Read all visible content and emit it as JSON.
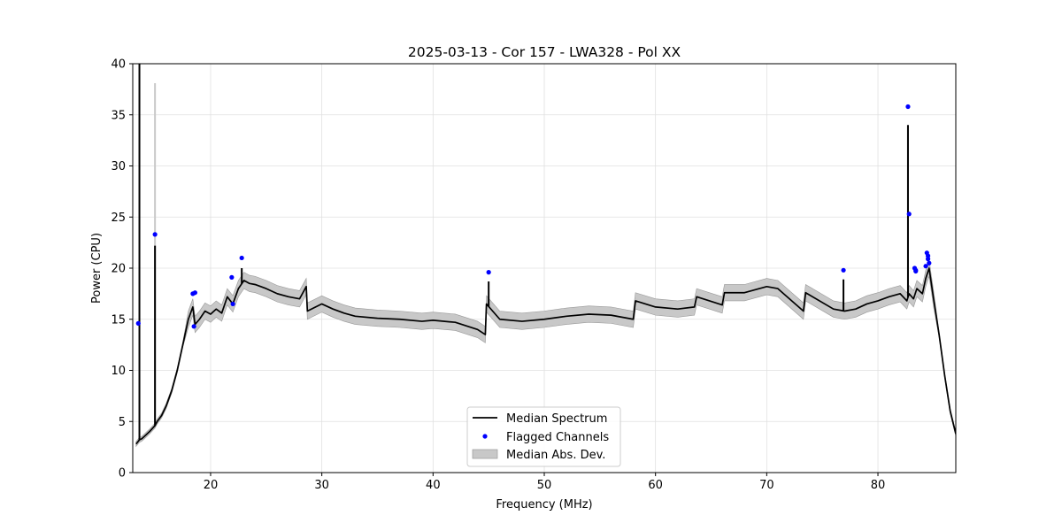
{
  "chart_data": {
    "type": "line",
    "title": "2025-03-13 - Cor 157 - LWA328 - Pol XX",
    "xlabel": "Frequency (MHz)",
    "ylabel": "Power (CPU)",
    "xlim": [
      13.0,
      87.0
    ],
    "ylim": [
      0,
      40
    ],
    "xticks": [
      20,
      30,
      40,
      50,
      60,
      70,
      80
    ],
    "yticks": [
      0,
      5,
      10,
      15,
      20,
      25,
      30,
      35,
      40
    ],
    "grid": true,
    "legend_position": "bottom-center",
    "legend": [
      "Median Spectrum",
      "Flagged Channels",
      "Median Abs. Dev."
    ],
    "colors": {
      "line": "#000000",
      "flagged": "#0000ff",
      "band": "#c8c8c8",
      "band_edge": "#999999",
      "grid": "#e0e0e0"
    },
    "series": [
      {
        "name": "Median Spectrum",
        "x": [
          13.3,
          13.6,
          13.8,
          14.0,
          14.5,
          15.0,
          15.2,
          15.6,
          16.0,
          16.5,
          17.0,
          17.5,
          18.0,
          18.4,
          18.6,
          19.0,
          19.5,
          20.0,
          20.5,
          21.0,
          21.5,
          22.0,
          22.5,
          23.0,
          23.5,
          24.0,
          25.0,
          26.0,
          27.0,
          28.0,
          28.6,
          28.7,
          30.0,
          31.0,
          32.0,
          33.0,
          35.0,
          37.0,
          39.0,
          40.0,
          42.0,
          44.0,
          44.7,
          44.8,
          46.0,
          48.0,
          50.0,
          52.0,
          54.0,
          56.0,
          58.0,
          58.2,
          60.0,
          62.0,
          63.5,
          63.7,
          66.0,
          66.2,
          68.0,
          70.0,
          71.0,
          73.3,
          73.5,
          76.0,
          77.0,
          78.0,
          79.0,
          80.0,
          81.0,
          82.0,
          82.6,
          82.8,
          83.2,
          83.5,
          84.0,
          84.3,
          84.6,
          85.0,
          85.5,
          86.0,
          86.5,
          87.0
        ],
        "y": [
          2.8,
          3.2,
          3.3,
          3.5,
          4.0,
          4.6,
          5.0,
          5.6,
          6.5,
          8.0,
          10.0,
          12.5,
          15.0,
          16.2,
          14.5,
          15.0,
          15.8,
          15.5,
          16.0,
          15.6,
          17.2,
          16.5,
          18.0,
          18.8,
          18.5,
          18.4,
          18.0,
          17.5,
          17.2,
          17.0,
          18.2,
          15.8,
          16.5,
          16.0,
          15.6,
          15.3,
          15.1,
          15.0,
          14.8,
          14.9,
          14.7,
          14.0,
          13.5,
          16.5,
          15.0,
          14.8,
          15.0,
          15.3,
          15.5,
          15.4,
          15.0,
          16.8,
          16.2,
          16.0,
          16.2,
          17.2,
          16.4,
          17.6,
          17.6,
          18.2,
          18.0,
          15.8,
          17.6,
          16.0,
          15.8,
          16.0,
          16.5,
          16.8,
          17.2,
          17.5,
          16.8,
          17.5,
          17.0,
          18.0,
          17.5,
          19.0,
          20.0,
          17.0,
          13.5,
          9.5,
          6.0,
          3.8
        ]
      }
    ],
    "spikes": [
      {
        "x": 13.6,
        "y": 40.0
      },
      {
        "x": 15.0,
        "y": 22.2
      },
      {
        "x": 22.8,
        "y": 20.0
      },
      {
        "x": 45.0,
        "y": 18.7
      },
      {
        "x": 76.9,
        "y": 18.9
      },
      {
        "x": 82.7,
        "y": 34.0
      }
    ],
    "flagged_channels": {
      "x": [
        13.5,
        15.0,
        18.4,
        18.6,
        18.5,
        21.9,
        22.0,
        22.8,
        45.0,
        76.9,
        82.7,
        82.8,
        83.3,
        83.4,
        83.4,
        84.3,
        84.4,
        84.5,
        84.5,
        84.6
      ],
      "y": [
        14.6,
        23.3,
        17.5,
        17.6,
        14.3,
        19.1,
        16.5,
        21.0,
        19.6,
        19.8,
        35.8,
        25.3,
        20.0,
        19.8,
        19.7,
        20.2,
        21.5,
        21.2,
        20.9,
        20.5
      ]
    },
    "mad_band": {
      "name": "Median Abs. Dev.",
      "halfwidth": 0.8,
      "spike_extra": [
        {
          "x": 15.0,
          "top": 38.1
        }
      ]
    }
  }
}
